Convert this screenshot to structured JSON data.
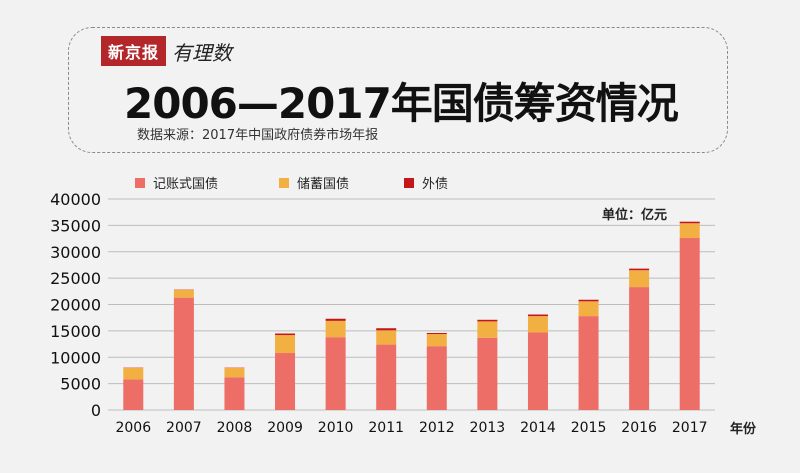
{
  "header": {
    "brand": "新京报",
    "brand_sub": "有理数",
    "title": "2006—2017年国债筹资情况",
    "source": "数据来源：2017年中国政府债券市场年报"
  },
  "unit_label": "单位：亿元",
  "x_unit_label": "年份",
  "chart_data": {
    "type": "bar",
    "stacked": true,
    "categories": [
      "2006",
      "2007",
      "2008",
      "2009",
      "2010",
      "2011",
      "2012",
      "2013",
      "2014",
      "2015",
      "2016",
      "2017"
    ],
    "series": [
      {
        "name": "记账式国债",
        "color": "#ec6e66",
        "values": [
          5800,
          21300,
          6200,
          10800,
          13800,
          12400,
          12100,
          13700,
          14700,
          17800,
          23300,
          32600
        ]
      },
      {
        "name": "储蓄国债",
        "color": "#f2b043",
        "values": [
          2200,
          1500,
          1800,
          3400,
          3100,
          2700,
          2300,
          3100,
          3100,
          2800,
          3200,
          2800
        ]
      },
      {
        "name": "外债",
        "color": "#c4161c",
        "values": [
          50,
          50,
          50,
          300,
          400,
          400,
          200,
          300,
          300,
          300,
          300,
          300
        ]
      }
    ],
    "ylim": [
      0,
      40000
    ],
    "yticks": [
      0,
      5000,
      10000,
      15000,
      20000,
      25000,
      30000,
      35000,
      40000
    ],
    "grid": true,
    "legend_position": "top"
  }
}
